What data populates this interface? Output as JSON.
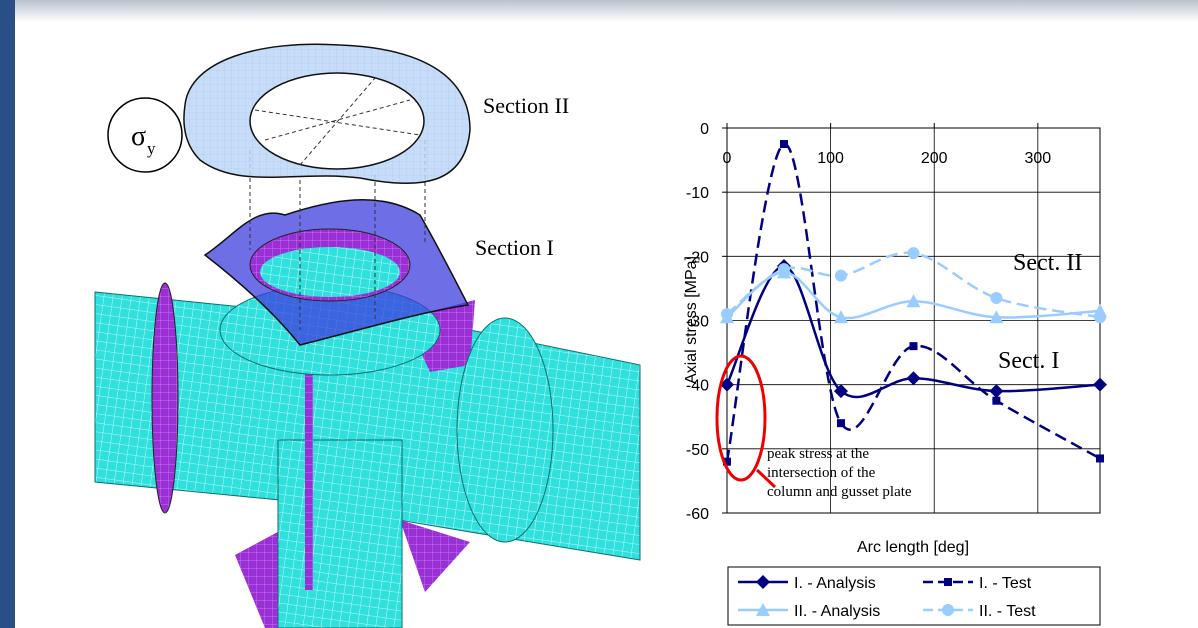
{
  "figure": {
    "section_labels": [
      "Section II",
      "Section I"
    ],
    "sigma": "σ",
    "sigma_subscript": "y"
  },
  "chart_data": {
    "type": "line",
    "y_label": "Axial stress [MPa]",
    "x_label": "Arc length [deg]",
    "xlim": [
      0,
      360
    ],
    "xticks": [
      0,
      100,
      200,
      300
    ],
    "ylim": [
      -60,
      0
    ],
    "yticks": [
      0,
      -10,
      -20,
      -30,
      -40,
      -50,
      -60
    ],
    "grid": true,
    "legend": "bottom",
    "series": [
      {
        "name": "I. - Analysis",
        "color": "#000080",
        "marker": "diamond",
        "dash": false,
        "x": [
          0,
          55,
          110,
          180,
          260,
          360
        ],
        "values": [
          -40,
          -21.5,
          -41,
          -39,
          -41,
          -40
        ]
      },
      {
        "name": "I. - Test",
        "color": "#000080",
        "marker": "square",
        "dash": true,
        "x": [
          0,
          55,
          110,
          180,
          260,
          360
        ],
        "values": [
          -52,
          -2.5,
          -46,
          -34,
          -42.5,
          -51.5
        ]
      },
      {
        "name": "II. - Analysis",
        "color": "#99ccff",
        "marker": "triangle",
        "dash": false,
        "x": [
          0,
          55,
          110,
          180,
          260,
          360
        ],
        "values": [
          -29.5,
          -22.5,
          -29.5,
          -27,
          -29.5,
          -28.5
        ]
      },
      {
        "name": "II. - Test",
        "color": "#99ccff",
        "marker": "circle",
        "dash": true,
        "x": [
          0,
          55,
          110,
          180,
          260,
          360
        ],
        "values": [
          -29,
          -22,
          -23,
          -19.5,
          -26.5,
          -29.5
        ]
      }
    ],
    "annotations": [
      "Sect. II",
      "Sect. I"
    ],
    "note_lines": [
      "peak stress at the",
      "intersection of the",
      "column and gusset plate"
    ]
  }
}
